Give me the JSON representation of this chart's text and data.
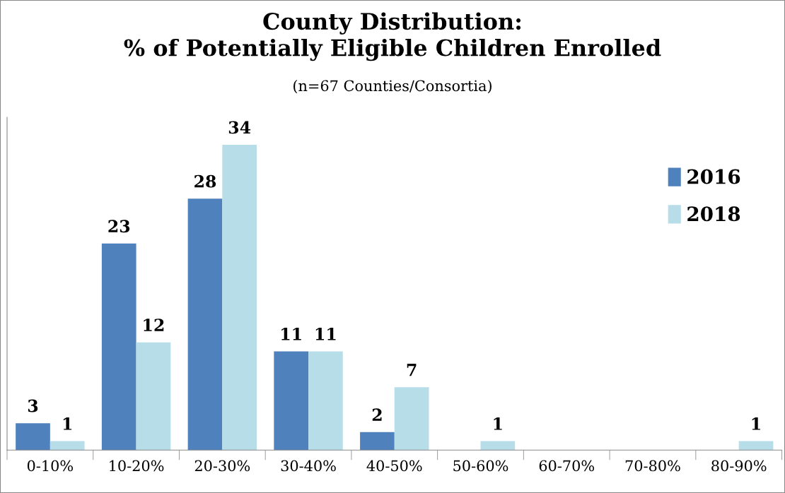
{
  "chart_data": {
    "type": "bar",
    "title": "County Distribution:\n% of Potentially Eligible Children Enrolled",
    "subtitle": "(n=67 Counties/Consortia)",
    "categories": [
      "0-10%",
      "10-20%",
      "20-30%",
      "30-40%",
      "40-50%",
      "50-60%",
      "60-70%",
      "70-80%",
      "80-90%"
    ],
    "series": [
      {
        "name": "2016",
        "color": "#4f81bd",
        "values": [
          3,
          23,
          28,
          11,
          2,
          0,
          0,
          0,
          0
        ],
        "value_labels": [
          "3",
          "23",
          "28",
          "11",
          "2",
          null,
          null,
          null,
          null
        ]
      },
      {
        "name": "2018",
        "color": "#b7dde8",
        "values": [
          1,
          12,
          34,
          11,
          7,
          1,
          0,
          0,
          1
        ],
        "value_labels": [
          "1",
          "12",
          "34",
          "11",
          "7",
          "1",
          null,
          null,
          "1"
        ]
      }
    ],
    "legend": "top right",
    "grid": false
  }
}
